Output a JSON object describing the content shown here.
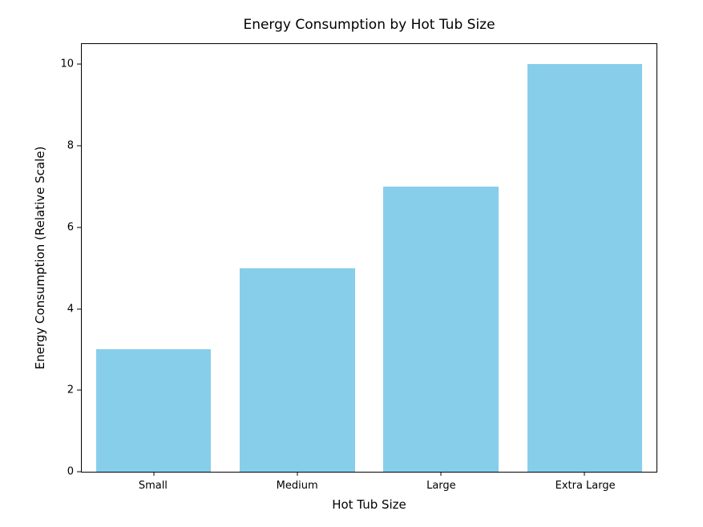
{
  "chart_data": {
    "type": "bar",
    "title": "Energy Consumption by Hot Tub Size",
    "xlabel": "Hot Tub Size",
    "ylabel": "Energy Consumption (Relative Scale)",
    "categories": [
      "Small",
      "Medium",
      "Large",
      "Extra Large"
    ],
    "values": [
      3,
      5,
      7,
      10
    ],
    "yticks": [
      0,
      2,
      4,
      6,
      8,
      10
    ],
    "ylim": [
      0,
      10.5
    ],
    "bar_color": "#87CEEB",
    "spine_color": "#000000",
    "text_color": "#000000",
    "background": "#ffffff",
    "grid": false,
    "legend": "none",
    "bar_width_fraction": 0.8
  }
}
